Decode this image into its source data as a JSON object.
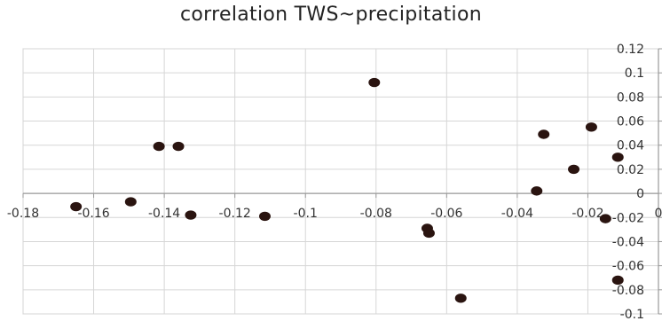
{
  "chart_data": {
    "type": "scatter",
    "title": "correlation TWS~precipitation",
    "xlabel": "",
    "ylabel": "",
    "xlim": [
      -0.18,
      0.0
    ],
    "ylim": [
      -0.1,
      0.12
    ],
    "x_ticks": [
      -0.18,
      -0.16,
      -0.14,
      -0.12,
      -0.1,
      -0.08,
      -0.06,
      -0.04,
      -0.02,
      0
    ],
    "x_tick_labels": [
      "-0.18",
      "-0.16",
      "-0.14",
      "-0.12",
      "-0.1",
      "-0.08",
      "-0.06",
      "-0.04",
      "-0.02",
      "0"
    ],
    "y_ticks": [
      -0.1,
      -0.08,
      -0.06,
      -0.04,
      -0.02,
      0,
      0.02,
      0.04,
      0.06,
      0.08,
      0.1,
      0.12
    ],
    "y_tick_labels": [
      "-0.1",
      "-0.08",
      "-0.06",
      "-0.04",
      "-0.02",
      "0",
      "0.02",
      "0.04",
      "0.06",
      "0.08",
      "0.1",
      "0.12"
    ],
    "grid": true,
    "legend": "none",
    "marker_color": "#2a1410",
    "series": [
      {
        "points": [
          {
            "x": -0.165,
            "y": -0.011
          },
          {
            "x": -0.1495,
            "y": -0.007
          },
          {
            "x": -0.1415,
            "y": 0.039
          },
          {
            "x": -0.136,
            "y": 0.039
          },
          {
            "x": -0.1325,
            "y": -0.018
          },
          {
            "x": -0.1115,
            "y": -0.019
          },
          {
            "x": -0.0805,
            "y": 0.092
          },
          {
            "x": -0.0655,
            "y": -0.029
          },
          {
            "x": -0.065,
            "y": -0.033
          },
          {
            "x": -0.056,
            "y": -0.087
          },
          {
            "x": -0.0345,
            "y": 0.002
          },
          {
            "x": -0.0325,
            "y": 0.049
          },
          {
            "x": -0.024,
            "y": 0.02
          },
          {
            "x": -0.019,
            "y": 0.055
          },
          {
            "x": -0.015,
            "y": -0.021
          },
          {
            "x": -0.0115,
            "y": 0.03
          },
          {
            "x": -0.0115,
            "y": -0.072
          }
        ]
      }
    ]
  }
}
